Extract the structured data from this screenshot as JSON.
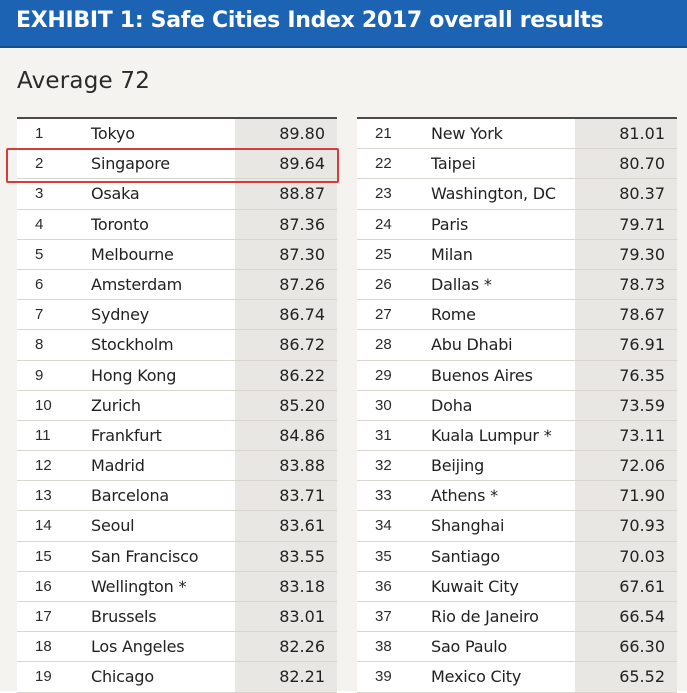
{
  "header": {
    "title": "EXHIBIT 1: Safe Cities Index 2017 overall results",
    "background_color": "#1c64b3"
  },
  "summary": {
    "average_label": "Average 72"
  },
  "highlight": {
    "rank": "2",
    "color": "#d93b3b"
  },
  "table_left": [
    {
      "rank": "1",
      "city": "Tokyo",
      "score": "89.80"
    },
    {
      "rank": "2",
      "city": "Singapore",
      "score": "89.64"
    },
    {
      "rank": "3",
      "city": "Osaka",
      "score": "88.87"
    },
    {
      "rank": "4",
      "city": "Toronto",
      "score": "87.36"
    },
    {
      "rank": "5",
      "city": "Melbourne",
      "score": "87.30"
    },
    {
      "rank": "6",
      "city": "Amsterdam",
      "score": "87.26"
    },
    {
      "rank": "7",
      "city": "Sydney",
      "score": "86.74"
    },
    {
      "rank": "8",
      "city": "Stockholm",
      "score": "86.72"
    },
    {
      "rank": "9",
      "city": "Hong Kong",
      "score": "86.22"
    },
    {
      "rank": "10",
      "city": "Zurich",
      "score": "85.20"
    },
    {
      "rank": "11",
      "city": "Frankfurt",
      "score": "84.86"
    },
    {
      "rank": "12",
      "city": "Madrid",
      "score": "83.88"
    },
    {
      "rank": "13",
      "city": "Barcelona",
      "score": "83.71"
    },
    {
      "rank": "14",
      "city": "Seoul",
      "score": "83.61"
    },
    {
      "rank": "15",
      "city": "San Francisco",
      "score": "83.55"
    },
    {
      "rank": "16",
      "city": "Wellington *",
      "score": "83.18"
    },
    {
      "rank": "17",
      "city": "Brussels",
      "score": "83.01"
    },
    {
      "rank": "18",
      "city": "Los Angeles",
      "score": "82.26"
    },
    {
      "rank": "19",
      "city": "Chicago",
      "score": "82.21"
    }
  ],
  "table_right": [
    {
      "rank": "21",
      "city": "New York",
      "score": "81.01"
    },
    {
      "rank": "22",
      "city": "Taipei",
      "score": "80.70"
    },
    {
      "rank": "23",
      "city": "Washington, DC",
      "score": "80.37"
    },
    {
      "rank": "24",
      "city": "Paris",
      "score": "79.71"
    },
    {
      "rank": "25",
      "city": "Milan",
      "score": "79.30"
    },
    {
      "rank": "26",
      "city": "Dallas *",
      "score": "78.73"
    },
    {
      "rank": "27",
      "city": "Rome",
      "score": "78.67"
    },
    {
      "rank": "28",
      "city": "Abu Dhabi",
      "score": "76.91"
    },
    {
      "rank": "29",
      "city": "Buenos Aires",
      "score": "76.35"
    },
    {
      "rank": "30",
      "city": "Doha",
      "score": "73.59"
    },
    {
      "rank": "31",
      "city": "Kuala Lumpur *",
      "score": "73.11"
    },
    {
      "rank": "32",
      "city": "Beijing",
      "score": "72.06"
    },
    {
      "rank": "33",
      "city": "Athens *",
      "score": "71.90"
    },
    {
      "rank": "34",
      "city": "Shanghai",
      "score": "70.93"
    },
    {
      "rank": "35",
      "city": "Santiago",
      "score": "70.03"
    },
    {
      "rank": "36",
      "city": "Kuwait City",
      "score": "67.61"
    },
    {
      "rank": "37",
      "city": "Rio de Janeiro",
      "score": "66.54"
    },
    {
      "rank": "38",
      "city": "Sao Paulo",
      "score": "66.30"
    },
    {
      "rank": "39",
      "city": "Mexico City",
      "score": "65.52"
    }
  ]
}
